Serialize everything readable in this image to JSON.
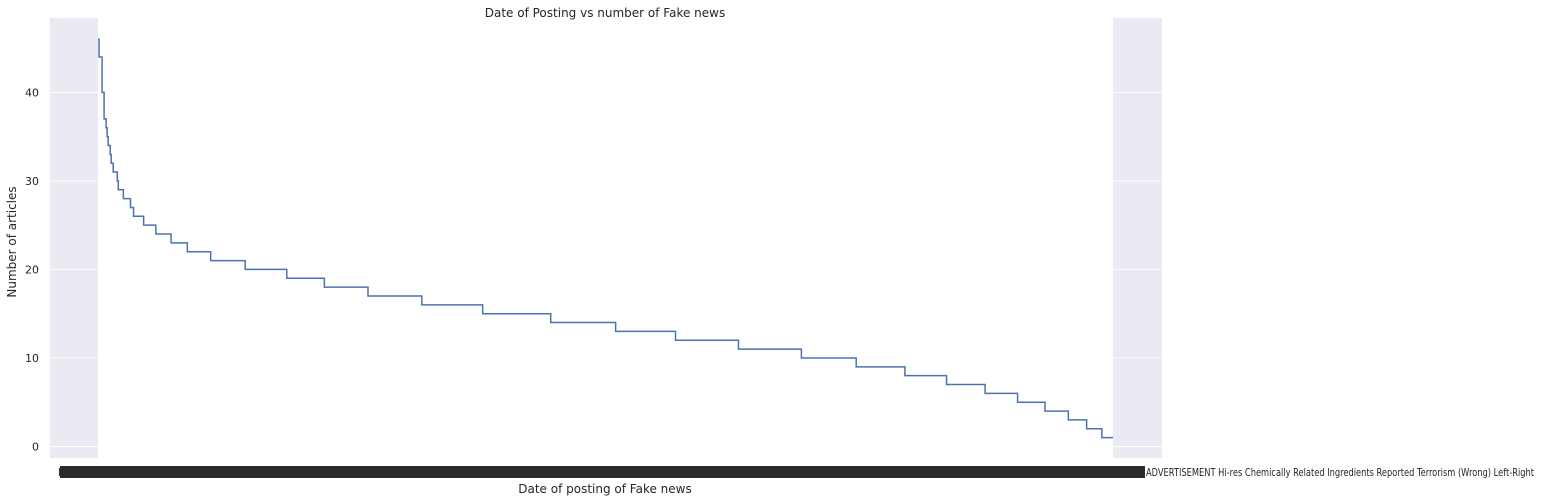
{
  "chart_data": {
    "type": "line",
    "title": "Date of Posting vs number of Fake news",
    "xlabel": "Date of posting of Fake news",
    "ylabel": "Number of articles",
    "yticks": [
      0,
      10,
      20,
      30,
      40
    ],
    "ylim": [
      -1.3,
      48.4
    ],
    "grid": true,
    "x_tick_labels_overlapping": true,
    "x_tick_text": "F",
    "x_tick_tail_text": "ADVERTISEMENT Hi-res Chemically Related Ingredients Reported Terrorism (Wrong) Left-Right",
    "x_index_range": [
      0,
      1000
    ],
    "series": [
      {
        "color": "#4c72b0",
        "steps": [
          [
            0,
            46
          ],
          [
            1,
            44
          ],
          [
            4,
            40
          ],
          [
            6,
            37
          ],
          [
            8,
            36
          ],
          [
            9,
            35
          ],
          [
            10,
            34
          ],
          [
            12,
            33
          ],
          [
            13,
            32
          ],
          [
            15,
            31
          ],
          [
            19,
            30
          ],
          [
            20,
            29
          ],
          [
            25,
            28
          ],
          [
            32,
            27
          ],
          [
            35,
            26
          ],
          [
            45,
            25
          ],
          [
            57,
            24
          ],
          [
            72,
            23
          ],
          [
            88,
            22
          ],
          [
            111,
            21
          ],
          [
            145,
            20
          ],
          [
            186,
            19
          ],
          [
            223,
            18
          ],
          [
            266,
            17
          ],
          [
            319,
            16
          ],
          [
            379,
            15
          ],
          [
            446,
            14
          ],
          [
            510,
            13
          ],
          [
            569,
            12
          ],
          [
            631,
            11
          ],
          [
            693,
            10
          ],
          [
            747,
            9
          ],
          [
            795,
            8
          ],
          [
            836,
            7
          ],
          [
            874,
            6
          ],
          [
            906,
            5
          ],
          [
            933,
            4
          ],
          [
            956,
            3
          ],
          [
            974,
            2
          ],
          [
            989,
            1
          ],
          [
            1000,
            1
          ]
        ]
      }
    ]
  }
}
